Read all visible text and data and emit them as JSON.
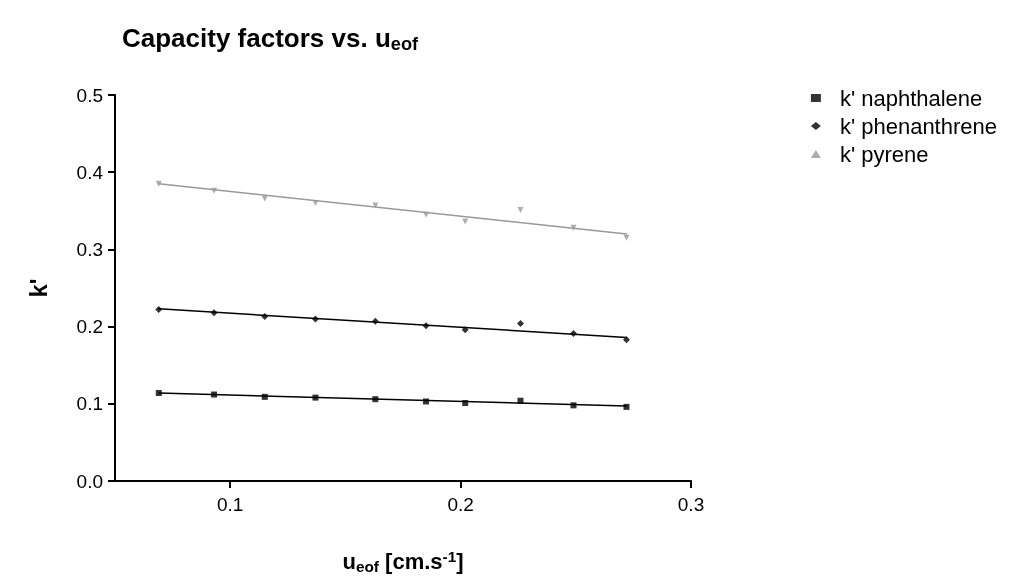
{
  "chart_data": {
    "type": "scatter",
    "title": "Capacity factors vs. u$_{eof}$",
    "xlabel": "u$_{eof}$ [cm.s$^{-1}$]",
    "ylabel": "k'",
    "series": [
      {
        "name": "k' naphthalene",
        "color": "#000000",
        "marker": "square",
        "x": [
          0.069,
          0.093,
          0.115,
          0.137,
          0.163,
          0.185,
          0.202,
          0.226,
          0.249,
          0.272
        ],
        "values": [
          0.114,
          0.112,
          0.109,
          0.108,
          0.106,
          0.103,
          0.101,
          0.104,
          0.098,
          0.096
        ]
      },
      {
        "name": "k' phenanthrene",
        "color": "#000000",
        "marker": "diamond",
        "x": [
          0.069,
          0.093,
          0.115,
          0.137,
          0.163,
          0.185,
          0.202,
          0.226,
          0.249,
          0.272
        ],
        "values": [
          0.222,
          0.218,
          0.213,
          0.21,
          0.207,
          0.201,
          0.196,
          0.204,
          0.191,
          0.183
        ]
      },
      {
        "name": "k' pyrene",
        "color": "#999999",
        "marker": "triangle",
        "x": [
          0.069,
          0.093,
          0.115,
          0.137,
          0.163,
          0.185,
          0.202,
          0.226,
          0.249,
          0.272
        ],
        "values": [
          0.385,
          0.376,
          0.366,
          0.36,
          0.357,
          0.345,
          0.336,
          0.351,
          0.328,
          0.315
        ]
      },
      {
        "type": "line",
        "color": "#000000",
        "x": [
          0.069,
          0.272
        ],
        "values": [
          0.114,
          0.097
        ]
      },
      {
        "type": "line",
        "color": "#000000",
        "x": [
          0.069,
          0.272
        ],
        "values": [
          0.223,
          0.186
        ]
      },
      {
        "type": "line",
        "color": "#999999",
        "x": [
          0.069,
          0.272
        ],
        "values": [
          0.385,
          0.32
        ]
      }
    ],
    "xlim": [
      0.05,
      0.3
    ],
    "xticks": [
      0.1,
      0.2,
      0.3
    ],
    "ylim": [
      0,
      0.5
    ],
    "yticks": [
      {
        "value": 0,
        "label": "0.0"
      },
      0.1,
      0.2,
      0.3,
      0.4,
      0.5
    ],
    "grid": false,
    "legend": "top right",
    "line_style": "solid"
  }
}
